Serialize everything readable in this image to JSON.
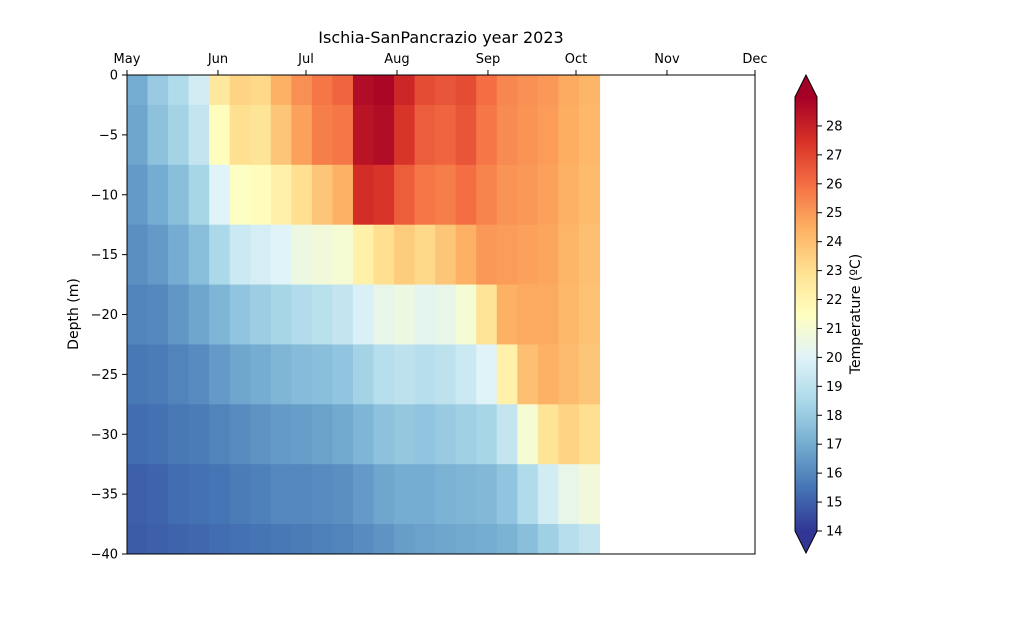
{
  "chart_data": {
    "type": "heatmap",
    "title": "Ischia-SanPancrazio year 2023",
    "xlabel": "",
    "ylabel": "Depth (m)",
    "x_ticks": [
      "May",
      "Jun",
      "Jul",
      "Aug",
      "Sep",
      "Oct",
      "Nov",
      "Dec"
    ],
    "x_tick_days": [
      0,
      31,
      61,
      92,
      123,
      153,
      184,
      214
    ],
    "xlim": [
      "2023-05-01",
      "2023-12-01"
    ],
    "x_axis_position": "top",
    "y_ticks": [
      0,
      -5,
      -10,
      -15,
      -20,
      -25,
      -30,
      -35,
      -40
    ],
    "ylim": [
      -40,
      0
    ],
    "colorbar": {
      "label": "Temperature (ºC)",
      "ticks": [
        14,
        15,
        16,
        17,
        18,
        19,
        20,
        21,
        22,
        23,
        24,
        25,
        26,
        27,
        28
      ],
      "range": [
        14,
        29
      ],
      "colormap": "RdYlBu_r",
      "extend": "both"
    },
    "depths_m": [
      0,
      -5,
      -10,
      -15,
      -20,
      -25,
      -30,
      -35,
      -40
    ],
    "profiles": [
      {
        "date": "2023-05-01",
        "temps": [
          17.0,
          16.8,
          16.5,
          16.2,
          15.9,
          15.6,
          15.3,
          15.0,
          14.9
        ]
      },
      {
        "date": "2023-05-08",
        "temps": [
          18.0,
          17.7,
          17.0,
          16.5,
          16.0,
          15.7,
          15.4,
          15.1,
          15.0
        ]
      },
      {
        "date": "2023-05-15",
        "temps": [
          18.6,
          18.3,
          17.6,
          17.0,
          16.4,
          15.9,
          15.6,
          15.3,
          15.1
        ]
      },
      {
        "date": "2023-05-22",
        "temps": [
          19.6,
          19.2,
          18.4,
          17.6,
          16.8,
          16.1,
          15.7,
          15.4,
          15.2
        ]
      },
      {
        "date": "2023-05-29",
        "temps": [
          22.6,
          21.6,
          20.0,
          18.5,
          17.3,
          16.5,
          15.9,
          15.5,
          15.3
        ]
      },
      {
        "date": "2023-06-05",
        "temps": [
          23.4,
          23.0,
          21.4,
          19.4,
          17.8,
          16.8,
          16.1,
          15.7,
          15.4
        ]
      },
      {
        "date": "2023-06-12",
        "temps": [
          23.2,
          22.8,
          21.6,
          19.7,
          18.1,
          17.0,
          16.3,
          15.8,
          15.5
        ]
      },
      {
        "date": "2023-06-19",
        "temps": [
          24.4,
          23.8,
          22.2,
          20.0,
          18.4,
          17.3,
          16.5,
          16.0,
          15.6
        ]
      },
      {
        "date": "2023-06-26",
        "temps": [
          25.2,
          24.8,
          23.0,
          20.6,
          18.7,
          17.5,
          16.6,
          16.0,
          15.7
        ]
      },
      {
        "date": "2023-07-03",
        "temps": [
          25.8,
          25.6,
          23.8,
          20.8,
          18.9,
          17.6,
          16.7,
          16.1,
          15.8
        ]
      },
      {
        "date": "2023-07-10",
        "temps": [
          26.2,
          25.8,
          24.4,
          21.0,
          19.2,
          17.8,
          16.9,
          16.2,
          15.9
        ]
      },
      {
        "date": "2023-07-17",
        "temps": [
          28.6,
          28.4,
          27.6,
          22.2,
          19.8,
          18.3,
          17.3,
          16.5,
          16.1
        ]
      },
      {
        "date": "2023-07-24",
        "temps": [
          28.8,
          28.6,
          27.4,
          23.0,
          20.4,
          18.8,
          17.7,
          16.8,
          16.3
        ]
      },
      {
        "date": "2023-07-31",
        "temps": [
          27.8,
          27.4,
          26.4,
          23.6,
          20.6,
          19.0,
          17.9,
          17.0,
          16.6
        ]
      },
      {
        "date": "2023-08-07",
        "temps": [
          26.8,
          26.4,
          25.8,
          23.2,
          20.2,
          18.8,
          17.8,
          17.0,
          16.7
        ]
      },
      {
        "date": "2023-08-14",
        "temps": [
          26.6,
          26.2,
          25.6,
          23.8,
          20.4,
          19.0,
          18.0,
          17.2,
          16.8
        ]
      },
      {
        "date": "2023-08-21",
        "temps": [
          26.8,
          26.6,
          26.0,
          24.4,
          21.0,
          19.4,
          18.2,
          17.3,
          16.9
        ]
      },
      {
        "date": "2023-08-28",
        "temps": [
          26.0,
          25.8,
          25.5,
          25.0,
          22.8,
          20.0,
          18.4,
          17.4,
          17.0
        ]
      },
      {
        "date": "2023-09-04",
        "temps": [
          25.4,
          25.3,
          25.1,
          24.9,
          24.4,
          22.2,
          19.2,
          17.8,
          17.2
        ]
      },
      {
        "date": "2023-09-11",
        "temps": [
          25.2,
          25.1,
          25.0,
          24.8,
          24.6,
          24.0,
          21.0,
          18.6,
          17.6
        ]
      },
      {
        "date": "2023-09-18",
        "temps": [
          25.0,
          24.9,
          24.8,
          24.7,
          24.6,
          24.4,
          22.8,
          19.6,
          18.2
        ]
      },
      {
        "date": "2023-09-25",
        "temps": [
          24.6,
          24.5,
          24.4,
          24.3,
          24.2,
          24.1,
          23.4,
          20.4,
          18.8
        ]
      },
      {
        "date": "2023-10-02",
        "temps": [
          24.3,
          24.2,
          24.1,
          24.0,
          23.9,
          23.8,
          23.0,
          20.8,
          19.2
        ]
      }
    ],
    "grid": false,
    "legend": "colorbar-right"
  }
}
